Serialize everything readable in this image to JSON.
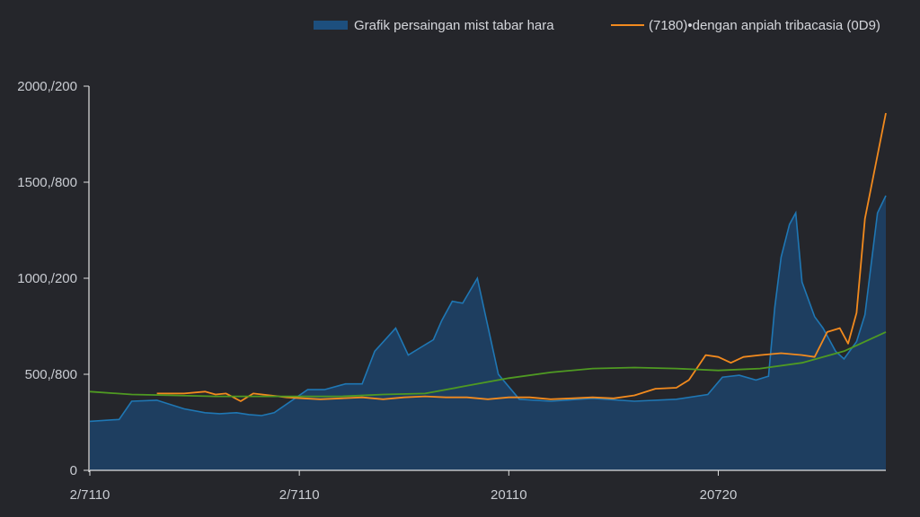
{
  "chart_data": {
    "type": "area",
    "title": "",
    "xlabel": "",
    "ylabel": "",
    "ylim": [
      0,
      2000
    ],
    "grid": false,
    "legend_position": "top-right",
    "y_ticks": [
      "0",
      "500,/800",
      "1000,/200",
      "1500,/800",
      "2000,/200"
    ],
    "y_tick_values": [
      0,
      500,
      1000,
      1500,
      2000
    ],
    "x_ticks": [
      "2/7110",
      "2/7110",
      "20110",
      "20720"
    ],
    "x_tick_values": [
      0,
      1,
      2,
      3
    ],
    "xlim": [
      0,
      3.8
    ],
    "colors": {
      "area_fill": "#1d3f63",
      "area_stroke": "#1f77b4",
      "series_orange": "#f28a1e",
      "series_green": "#4f9a22",
      "axis": "#e0e0e0"
    },
    "series": [
      {
        "name": "Grafik persaingan mist tabar hara",
        "kind": "area",
        "x": [
          0.0,
          0.14,
          0.2,
          0.32,
          0.45,
          0.55,
          0.62,
          0.7,
          0.76,
          0.82,
          0.88,
          1.04,
          1.12,
          1.22,
          1.3,
          1.36,
          1.46,
          1.52,
          1.58,
          1.64,
          1.68,
          1.73,
          1.78,
          1.85,
          1.95,
          2.05,
          2.2,
          2.4,
          2.6,
          2.8,
          2.95,
          3.02,
          3.1,
          3.18,
          3.24,
          3.27,
          3.3,
          3.34,
          3.37,
          3.4,
          3.46,
          3.5,
          3.56,
          3.6,
          3.66,
          3.7,
          3.76,
          3.8
        ],
        "y": [
          255,
          265,
          360,
          365,
          320,
          300,
          295,
          300,
          290,
          285,
          300,
          420,
          420,
          450,
          450,
          620,
          740,
          600,
          640,
          680,
          780,
          880,
          870,
          1000,
          500,
          370,
          360,
          375,
          360,
          370,
          395,
          485,
          495,
          470,
          490,
          850,
          1110,
          1280,
          1340,
          980,
          800,
          740,
          620,
          580,
          670,
          810,
          1340,
          1430
        ]
      },
      {
        "name": "(7180)•dengan anpiah tribacasia (0D9)",
        "kind": "line",
        "x": [
          0.32,
          0.45,
          0.55,
          0.6,
          0.65,
          0.72,
          0.78,
          0.86,
          0.94,
          1.02,
          1.1,
          1.2,
          1.3,
          1.4,
          1.5,
          1.6,
          1.7,
          1.8,
          1.9,
          2.0,
          2.1,
          2.2,
          2.3,
          2.4,
          2.5,
          2.6,
          2.7,
          2.8,
          2.86,
          2.94,
          3.0,
          3.06,
          3.12,
          3.2,
          3.3,
          3.4,
          3.46,
          3.52,
          3.58,
          3.62,
          3.66,
          3.7,
          3.76,
          3.8
        ],
        "y": [
          400,
          400,
          410,
          395,
          400,
          360,
          400,
          390,
          380,
          375,
          370,
          375,
          380,
          370,
          380,
          385,
          380,
          380,
          370,
          380,
          380,
          370,
          375,
          380,
          375,
          390,
          425,
          430,
          470,
          600,
          590,
          560,
          590,
          600,
          610,
          600,
          590,
          720,
          740,
          660,
          820,
          1310,
          1640,
          1860
        ]
      },
      {
        "name": "",
        "kind": "line",
        "x": [
          0.0,
          0.2,
          0.4,
          0.6,
          0.8,
          1.0,
          1.2,
          1.4,
          1.6,
          1.8,
          2.0,
          2.2,
          2.4,
          2.6,
          2.8,
          3.0,
          3.2,
          3.4,
          3.6,
          3.8
        ],
        "y": [
          410,
          395,
          390,
          385,
          385,
          385,
          385,
          395,
          400,
          440,
          480,
          510,
          530,
          535,
          530,
          520,
          530,
          560,
          620,
          720
        ]
      }
    ]
  }
}
